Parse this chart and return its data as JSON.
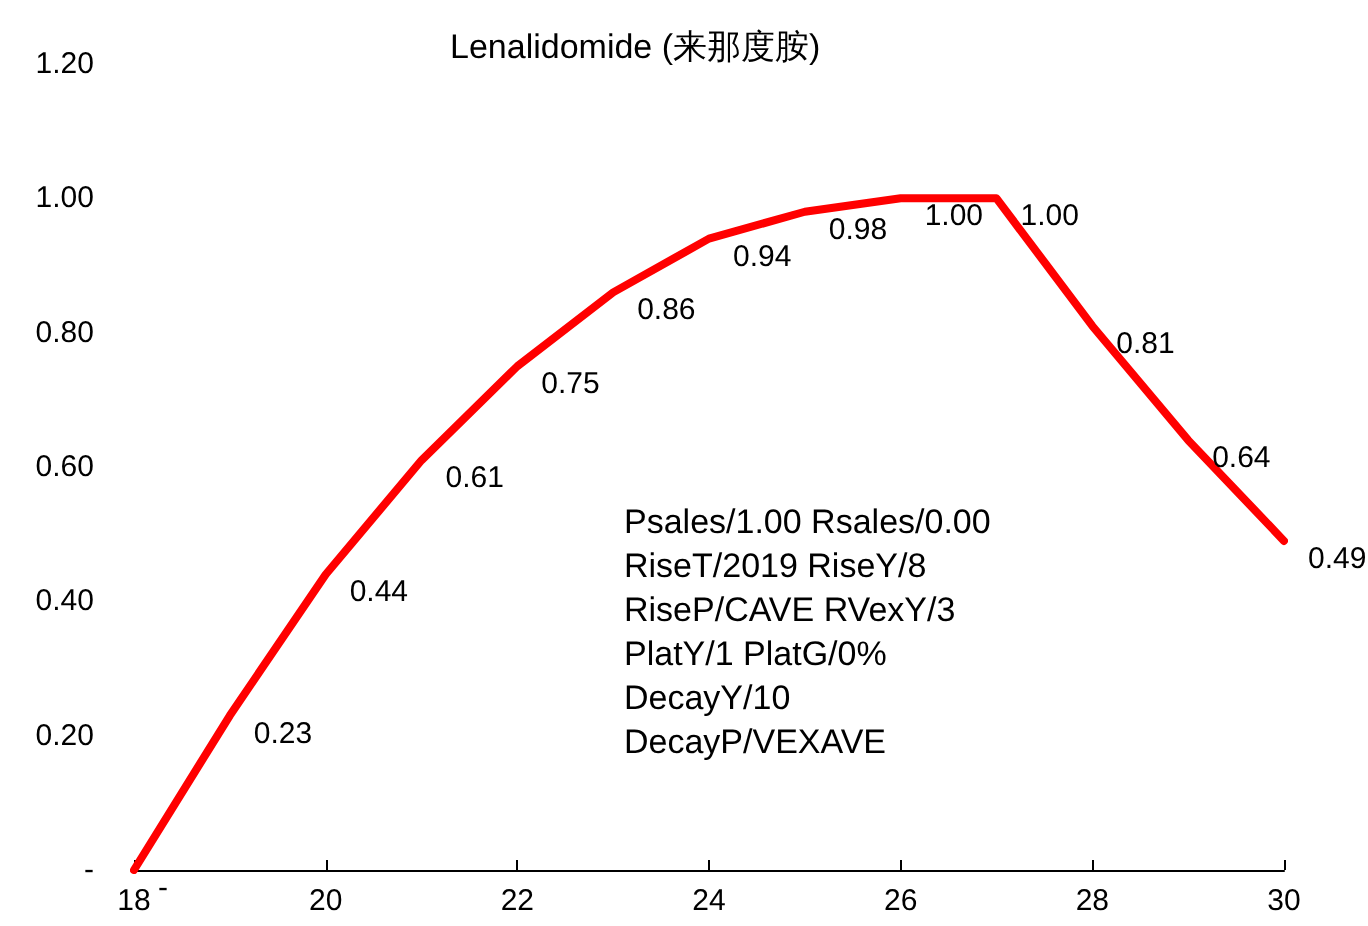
{
  "chart_data": {
    "type": "line",
    "title": "Lenalidomide (来那度胺)",
    "x": [
      18,
      19,
      20,
      21,
      22,
      23,
      24,
      25,
      26,
      27,
      28,
      29,
      30
    ],
    "series": [
      {
        "color": "#ff0000",
        "values": [
          0,
          0.23,
          0.44,
          0.61,
          0.75,
          0.86,
          0.94,
          0.98,
          1.0,
          1.0,
          0.81,
          0.64,
          0.49
        ],
        "value_labels": [
          "-",
          "0.23",
          "0.44",
          "0.61",
          "0.75",
          "0.86",
          "0.94",
          "0.98",
          "1.00",
          "1.00",
          "0.81",
          "0.64",
          "0.49"
        ]
      }
    ],
    "xlim": [
      18,
      30
    ],
    "xticks": [
      18,
      20,
      22,
      24,
      26,
      28,
      30
    ],
    "ylim": [
      0,
      1.2
    ],
    "yticks": [
      {
        "value": 0,
        "label": "-"
      },
      {
        "value": 0.2,
        "label": "0.20"
      },
      {
        "value": 0.4,
        "label": "0.40"
      },
      {
        "value": 0.6,
        "label": "0.60"
      },
      {
        "value": 0.8,
        "label": "0.80"
      },
      {
        "value": 1,
        "label": "1.00"
      },
      {
        "value": 1.2,
        "label": "1.20"
      }
    ],
    "grid": false,
    "marker": "none",
    "line_style": "solid",
    "annotations": [
      "Psales/1.00 Rsales/0.00",
      "RiseT/2019 RiseY/8",
      "RiseP/CAVE RVexY/3",
      "PlatY/1 PlatG/0%",
      "DecayY/10",
      "DecayP/VEXAVE"
    ]
  }
}
